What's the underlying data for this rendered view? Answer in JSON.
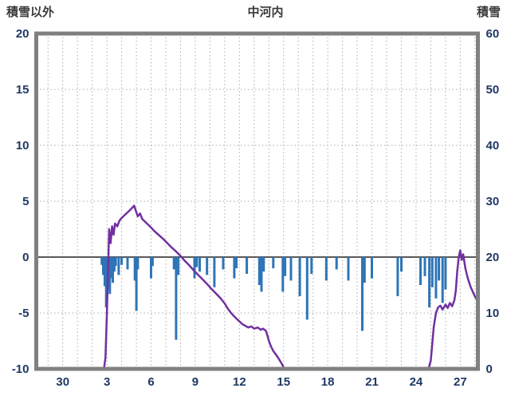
{
  "chart_data": {
    "type": "line+bar",
    "title": "中河内",
    "style": {
      "background": "#FFFFFF",
      "frame_color": "#808080",
      "grid_color": "#ADADAD",
      "zero_line_color": "#595959"
    },
    "left_axis": {
      "label": "積雪以外",
      "min": -10,
      "max": 20,
      "ticks": [
        {
          "label": "20",
          "value": 20
        },
        {
          "label": "15",
          "value": 15
        },
        {
          "label": "10",
          "value": 10
        },
        {
          "label": "5",
          "value": 5
        },
        {
          "label": "0",
          "value": 0
        },
        {
          "label": "-5",
          "value": -5
        },
        {
          "label": "-10",
          "value": -10
        }
      ],
      "grid_values": [
        15,
        10,
        5,
        -5
      ]
    },
    "right_axis": {
      "label": "積雪",
      "min": 0,
      "max": 60,
      "ticks": [
        {
          "label": "60",
          "value": 60
        },
        {
          "label": "50",
          "value": 50
        },
        {
          "label": "40",
          "value": 40
        },
        {
          "label": "30",
          "value": 30
        },
        {
          "label": "20",
          "value": 20
        },
        {
          "label": "10",
          "value": 10
        },
        {
          "label": "0",
          "value": 0
        }
      ]
    },
    "x_axis": {
      "range": [
        28.2,
        58.2
      ],
      "grid_step": 1,
      "ticks": [
        {
          "label": "30",
          "day": 30
        },
        {
          "label": "3",
          "day": 33
        },
        {
          "label": "6",
          "day": 36
        },
        {
          "label": "9",
          "day": 39
        },
        {
          "label": "12",
          "day": 42
        },
        {
          "label": "15",
          "day": 45
        },
        {
          "label": "18",
          "day": 48
        },
        {
          "label": "21",
          "day": 51
        },
        {
          "label": "24",
          "day": 54
        },
        {
          "label": "27",
          "day": 57
        }
      ]
    },
    "series": [
      {
        "name": "積雪",
        "type": "line",
        "axis": "right",
        "color": "#7030A0",
        "points": [
          [
            28.2,
            0
          ],
          [
            32.8,
            0
          ],
          [
            32.9,
            2
          ],
          [
            33.0,
            10
          ],
          [
            33.1,
            20
          ],
          [
            33.15,
            25
          ],
          [
            33.25,
            22.5
          ],
          [
            33.35,
            25.5
          ],
          [
            33.45,
            24
          ],
          [
            33.55,
            26
          ],
          [
            33.7,
            25.5
          ],
          [
            33.85,
            26.5
          ],
          [
            34.0,
            27
          ],
          [
            34.2,
            27.5
          ],
          [
            34.4,
            28
          ],
          [
            34.6,
            28.5
          ],
          [
            34.85,
            29.2
          ],
          [
            35.0,
            28
          ],
          [
            35.1,
            27.3
          ],
          [
            35.25,
            27.8
          ],
          [
            35.4,
            26.8
          ],
          [
            35.6,
            26.3
          ],
          [
            35.8,
            25.8
          ],
          [
            36.0,
            25.3
          ],
          [
            36.2,
            24.7
          ],
          [
            36.5,
            24
          ],
          [
            36.8,
            23.3
          ],
          [
            37.1,
            22.5
          ],
          [
            37.4,
            21.7
          ],
          [
            37.7,
            21
          ],
          [
            38.0,
            20.2
          ],
          [
            38.3,
            19.3
          ],
          [
            38.6,
            18.5
          ],
          [
            38.9,
            17.6
          ],
          [
            39.2,
            16.8
          ],
          [
            39.5,
            16
          ],
          [
            39.8,
            15.2
          ],
          [
            40.1,
            14.3
          ],
          [
            40.4,
            13.5
          ],
          [
            40.7,
            12.7
          ],
          [
            41.0,
            11.7
          ],
          [
            41.2,
            10.8
          ],
          [
            41.4,
            10.1
          ],
          [
            41.6,
            9.5
          ],
          [
            41.8,
            9
          ],
          [
            42.0,
            8.5
          ],
          [
            42.2,
            8
          ],
          [
            42.4,
            7.7
          ],
          [
            42.6,
            7.4
          ],
          [
            42.8,
            7.6
          ],
          [
            43.0,
            7.2
          ],
          [
            43.25,
            7.4
          ],
          [
            43.45,
            7
          ],
          [
            43.6,
            7.2
          ],
          [
            43.8,
            6.8
          ],
          [
            43.9,
            6
          ],
          [
            44.0,
            5
          ],
          [
            44.15,
            4
          ],
          [
            44.3,
            3.2
          ],
          [
            44.5,
            2.5
          ],
          [
            44.7,
            1.7
          ],
          [
            44.9,
            0.8
          ],
          [
            45.05,
            0
          ],
          [
            54.85,
            0
          ],
          [
            55.0,
            1.5
          ],
          [
            55.1,
            4.5
          ],
          [
            55.2,
            7.5
          ],
          [
            55.35,
            10
          ],
          [
            55.5,
            11
          ],
          [
            55.65,
            11.3
          ],
          [
            55.8,
            10.6
          ],
          [
            56.0,
            11.5
          ],
          [
            56.15,
            10.9
          ],
          [
            56.3,
            11.8
          ],
          [
            56.45,
            11.2
          ],
          [
            56.6,
            12.3
          ],
          [
            56.7,
            14
          ],
          [
            56.8,
            17.5
          ],
          [
            56.9,
            20
          ],
          [
            57.0,
            21.2
          ],
          [
            57.1,
            19.5
          ],
          [
            57.2,
            20.5
          ],
          [
            57.35,
            18
          ],
          [
            57.5,
            16.3
          ],
          [
            57.7,
            14.7
          ],
          [
            57.9,
            13.5
          ],
          [
            58.05,
            12.7
          ],
          [
            58.2,
            12.2
          ]
        ]
      },
      {
        "name": "積雪以外",
        "type": "bar",
        "axis": "left",
        "color": "#2E75B6",
        "points": [
          [
            32.65,
            -0.7
          ],
          [
            32.75,
            -1.6
          ],
          [
            32.85,
            -2.6
          ],
          [
            32.95,
            -4.5
          ],
          [
            33.0,
            -3.4
          ],
          [
            33.1,
            -2.9
          ],
          [
            33.2,
            -3.3
          ],
          [
            33.3,
            -1.9
          ],
          [
            33.4,
            -2.3
          ],
          [
            33.5,
            -1.3
          ],
          [
            33.6,
            -0.8
          ],
          [
            33.8,
            -1.6
          ],
          [
            34.0,
            -0.7
          ],
          [
            34.4,
            -1.1
          ],
          [
            34.9,
            -2.1
          ],
          [
            35.0,
            -4.8
          ],
          [
            35.1,
            -1.1
          ],
          [
            36.0,
            -1.9
          ],
          [
            36.1,
            -0.8
          ],
          [
            37.55,
            -1.1
          ],
          [
            37.7,
            -7.4
          ],
          [
            37.85,
            -1.6
          ],
          [
            38.95,
            -1.9
          ],
          [
            39.1,
            -0.9
          ],
          [
            39.3,
            -1.3
          ],
          [
            39.8,
            -1.6
          ],
          [
            40.3,
            -2.7
          ],
          [
            40.9,
            -1.1
          ],
          [
            41.65,
            -1.9
          ],
          [
            41.8,
            -1.0
          ],
          [
            42.5,
            -1.5
          ],
          [
            43.35,
            -2.5
          ],
          [
            43.5,
            -3.1
          ],
          [
            43.65,
            -1.3
          ],
          [
            44.3,
            -1.0
          ],
          [
            44.95,
            -3.1
          ],
          [
            45.1,
            -1.7
          ],
          [
            45.5,
            -2.1
          ],
          [
            46.1,
            -3.5
          ],
          [
            46.6,
            -5.6
          ],
          [
            46.9,
            -1.5
          ],
          [
            47.9,
            -2.1
          ],
          [
            48.6,
            -1.1
          ],
          [
            49.4,
            -2.1
          ],
          [
            50.35,
            -6.6
          ],
          [
            50.5,
            -2.3
          ],
          [
            51.0,
            -1.9
          ],
          [
            52.75,
            -3.5
          ],
          [
            53.0,
            -1.3
          ],
          [
            54.3,
            -2.5
          ],
          [
            54.6,
            -1.7
          ],
          [
            54.9,
            -4.5
          ],
          [
            55.1,
            -2.7
          ],
          [
            55.35,
            -3.7
          ],
          [
            55.55,
            -2.1
          ],
          [
            55.8,
            -4.1
          ],
          [
            56.0,
            -2.9
          ]
        ]
      }
    ]
  }
}
